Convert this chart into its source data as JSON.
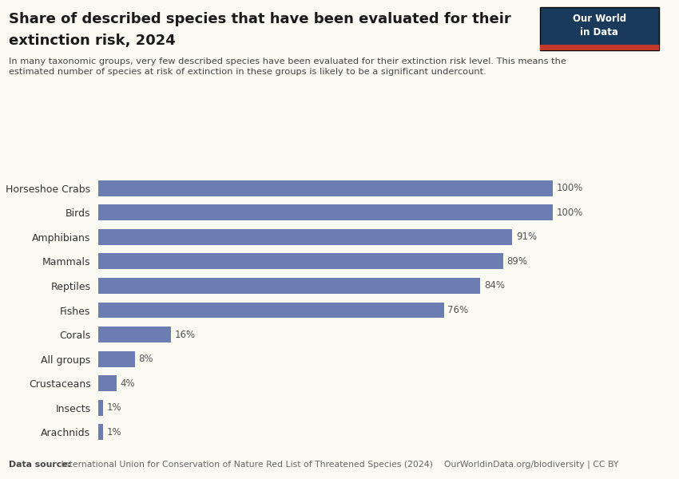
{
  "title_line1": "Share of described species that have been evaluated for their",
  "title_line2": "extinction risk, 2024",
  "subtitle": "In many taxonomic groups, very few described species have been evaluated for their extinction risk level. This means the\nestimated number of species at risk of extinction in these groups is likely to be a significant undercount.",
  "categories": [
    "Horseshoe Crabs",
    "Birds",
    "Amphibians",
    "Mammals",
    "Reptiles",
    "Fishes",
    "Corals",
    "All groups",
    "Crustaceans",
    "Insects",
    "Arachnids"
  ],
  "values": [
    100,
    100,
    91,
    89,
    84,
    76,
    16,
    8,
    4,
    1,
    1
  ],
  "bar_color": "#6b7db3",
  "background_color": "#fafaf2",
  "footnote_bold": "Data source:",
  "footnote_normal": " International Union for Conservation of Nature Red List of Threatened Species (2024)    OurWorldinData.org/biodiversity | CC BY",
  "logo_bg": "#1a3a5c",
  "logo_text_line1": "Our World",
  "logo_text_line2": "in Data",
  "logo_red": "#c0392b"
}
